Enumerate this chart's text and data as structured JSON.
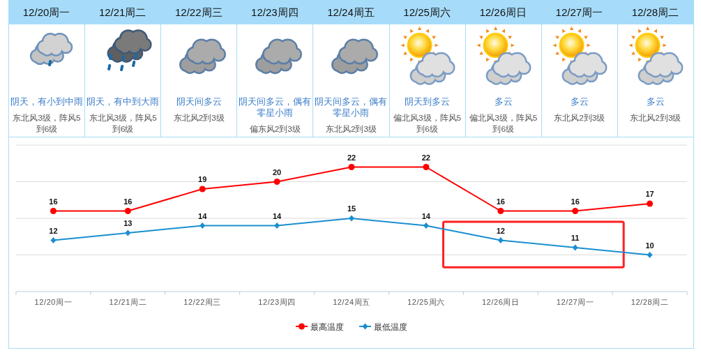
{
  "chart_data": [
    {
      "type": "other",
      "categories": [
        "12/20周一",
        "12/21周二",
        "12/22周三",
        "12/23周四",
        "12/24周五",
        "12/25周六",
        "12/26周日",
        "12/27周一",
        "12/28周二"
      ],
      "annotations": [
        "阴天，有小到中雨",
        "东北风3级，阵风5到6级",
        "阴天，有中到大雨",
        "东北风3级，阵风5到6级",
        "阴天间多云",
        "东北风2到3级",
        "阴天间多云，偶有零星小雨",
        "偏东风2到3级",
        "阴天间多云，偶有零星小雨",
        "东北风2到3级",
        "阴天到多云",
        "偏北风3级，阵风5到6级",
        "多云",
        "偏北风3级，阵风5到6级",
        "多云",
        "东北风2到3级",
        "多云",
        "东北风2到3级"
      ]
    },
    {
      "type": "line",
      "categories": [
        "12/20周一",
        "12/21周二",
        "12/22周三",
        "12/23周四",
        "12/24周五",
        "12/25周六",
        "12/26周日",
        "12/27周一",
        "12/28周二"
      ],
      "series": [
        {
          "name": "最高温度",
          "color": "#ff0000",
          "marker": "circle",
          "values": [
            16,
            16,
            19,
            20,
            22,
            22,
            16,
            16,
            17
          ]
        },
        {
          "name": "最低温度",
          "color": "#1a8fd0",
          "marker": "diamond",
          "values": [
            12,
            13,
            14,
            14,
            15,
            14,
            12,
            11,
            10
          ]
        }
      ],
      "ylim": [
        5,
        25
      ],
      "yticks": [
        {
          "value": 10,
          "label": null
        },
        {
          "value": 15,
          "label": null
        },
        {
          "value": 20,
          "label": null
        },
        {
          "value": 25,
          "label": null
        }
      ],
      "grid": "y",
      "tick_labels": "x",
      "data_labels": true,
      "legend": "bottom"
    }
  ]
}
